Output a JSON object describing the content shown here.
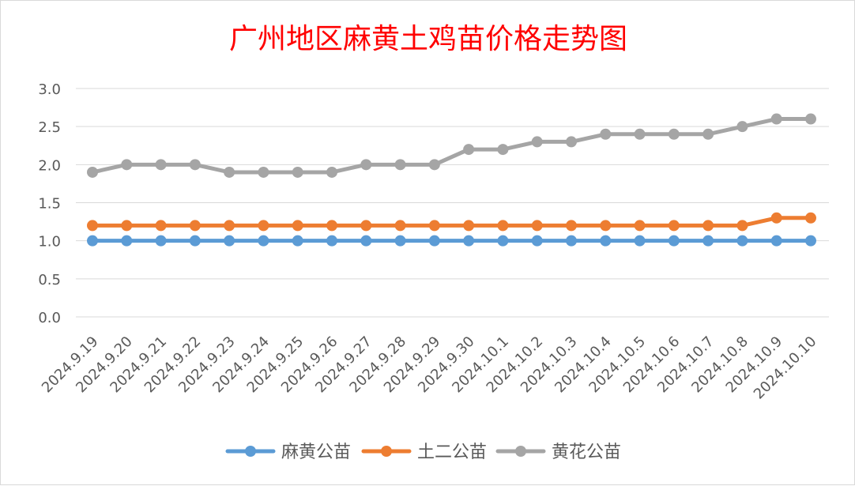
{
  "chart_data": {
    "type": "line",
    "title": "广州地区麻黄土鸡苗价格走势图",
    "xlabel": "",
    "ylabel": "",
    "ylim": [
      0,
      3.0
    ],
    "yticks": [
      "0.0",
      "0.5",
      "1.0",
      "1.5",
      "2.0",
      "2.5",
      "3.0"
    ],
    "grid": true,
    "legend_position": "bottom",
    "categories": [
      "2024.9.19",
      "2024.9.20",
      "2024.9.21",
      "2024.9.22",
      "2024.9.23",
      "2024.9.24",
      "2024.9.25",
      "2024.9.26",
      "2024.9.27",
      "2024.9.28",
      "2024.9.29",
      "2024.9.30",
      "2024.10.1",
      "2024.10.2",
      "2024.10.3",
      "2024.10.4",
      "2024.10.5",
      "2024.10.6",
      "2024.10.7",
      "2024.10.8",
      "2024.10.9",
      "2024.10.10"
    ],
    "series": [
      {
        "name": "麻黄公苗",
        "color": "#5b9bd5",
        "values": [
          1.0,
          1.0,
          1.0,
          1.0,
          1.0,
          1.0,
          1.0,
          1.0,
          1.0,
          1.0,
          1.0,
          1.0,
          1.0,
          1.0,
          1.0,
          1.0,
          1.0,
          1.0,
          1.0,
          1.0,
          1.0,
          1.0
        ]
      },
      {
        "name": "土二公苗",
        "color": "#ed7d31",
        "values": [
          1.2,
          1.2,
          1.2,
          1.2,
          1.2,
          1.2,
          1.2,
          1.2,
          1.2,
          1.2,
          1.2,
          1.2,
          1.2,
          1.2,
          1.2,
          1.2,
          1.2,
          1.2,
          1.2,
          1.2,
          1.3,
          1.3
        ]
      },
      {
        "name": "黄花公苗",
        "color": "#a5a5a5",
        "values": [
          1.9,
          2.0,
          2.0,
          2.0,
          1.9,
          1.9,
          1.9,
          1.9,
          2.0,
          2.0,
          2.0,
          2.2,
          2.2,
          2.3,
          2.3,
          2.4,
          2.4,
          2.4,
          2.4,
          2.5,
          2.6,
          2.6
        ]
      }
    ]
  }
}
